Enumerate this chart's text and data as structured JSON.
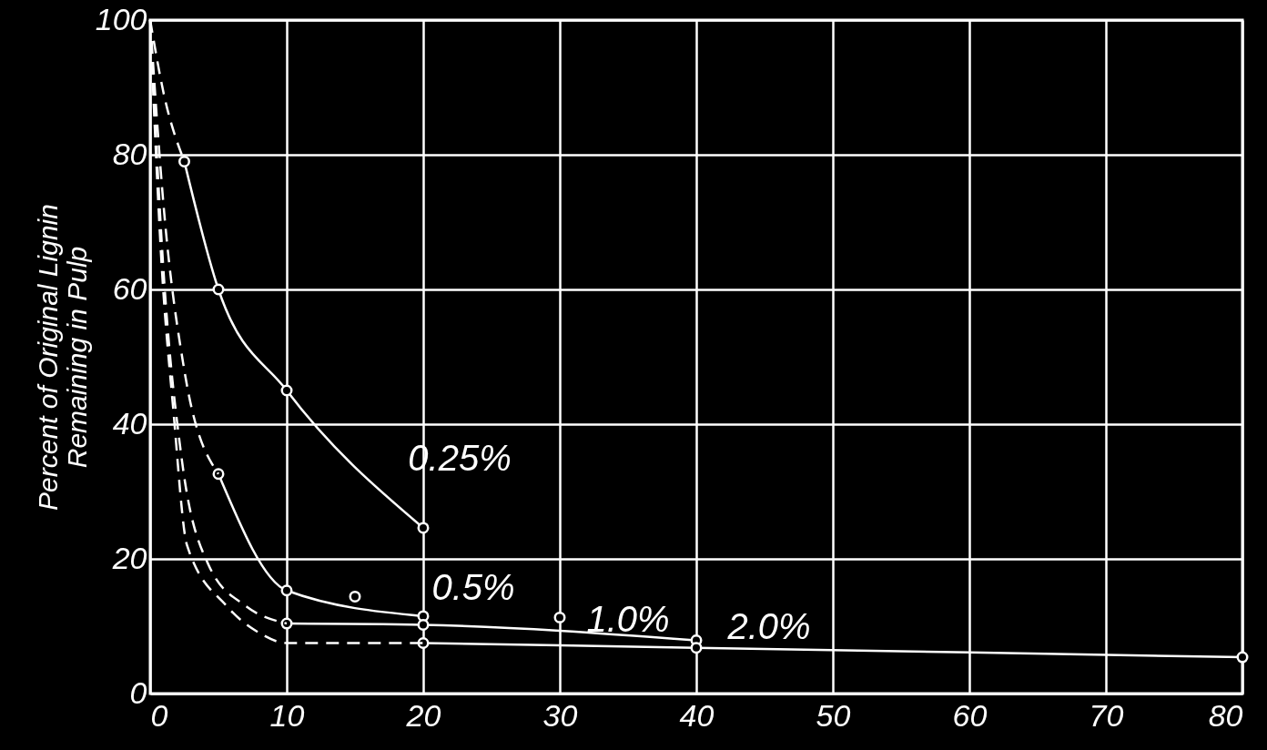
{
  "chart_data": {
    "type": "line",
    "ylabel": "Percent of Original Lignin\nRemaining in Pulp",
    "xlim": [
      0,
      80
    ],
    "ylim": [
      0,
      100
    ],
    "xticks": [
      0,
      10,
      20,
      30,
      40,
      50,
      60,
      70,
      80
    ],
    "yticks": [
      0,
      20,
      40,
      60,
      80,
      100
    ],
    "grid": true,
    "series": [
      {
        "name": "0.25%",
        "color": "#ffffff",
        "marker": "circle",
        "line_style": "solid",
        "x": [
          2.5,
          5,
          10,
          20
        ],
        "values": [
          79,
          60,
          45,
          24.6
        ]
      },
      {
        "name": "0.5%",
        "color": "#ffffff",
        "marker": "circle",
        "line_style": "solid",
        "x": [
          5,
          10,
          20
        ],
        "values": [
          32.6,
          15.3,
          11.5
        ]
      },
      {
        "name": "1.0%",
        "color": "#ffffff",
        "marker": "circle",
        "line_style": "solid",
        "x": [
          10,
          20,
          40
        ],
        "values": [
          10.4,
          10.2,
          7.9
        ]
      },
      {
        "name": "2.0%",
        "color": "#ffffff",
        "marker": "circle",
        "line_style": "solid",
        "x": [
          20,
          40,
          80
        ],
        "values": [
          7.5,
          6.8,
          5.4
        ]
      },
      {
        "type": "line",
        "color": "#ffffff",
        "marker": "none",
        "line_style": "dashed",
        "x": [
          0,
          1,
          2.5
        ],
        "values": [
          100,
          89,
          79
        ]
      },
      {
        "type": "line",
        "color": "#ffffff",
        "marker": "none",
        "line_style": "dashed",
        "x": [
          0,
          1,
          2.5,
          5
        ],
        "values": [
          100,
          72,
          48,
          32.6
        ]
      },
      {
        "type": "line",
        "color": "#ffffff",
        "marker": "none",
        "line_style": "dashed",
        "x": [
          0,
          1,
          2.3,
          4.3,
          7,
          10
        ],
        "values": [
          100,
          62,
          35,
          19,
          13,
          10.4
        ]
      },
      {
        "type": "line",
        "color": "#ffffff",
        "marker": "none",
        "line_style": "dashed",
        "x": [
          0,
          0.8,
          1.7,
          2.7,
          5.6,
          8,
          10,
          20
        ],
        "values": [
          100,
          65,
          42,
          22,
          13,
          9,
          7.5,
          7.5
        ]
      },
      {
        "type": "scatter",
        "color": "#ffffff",
        "marker": "circle",
        "x": [
          15,
          30
        ],
        "values": [
          14.4,
          11.3
        ]
      }
    ]
  }
}
